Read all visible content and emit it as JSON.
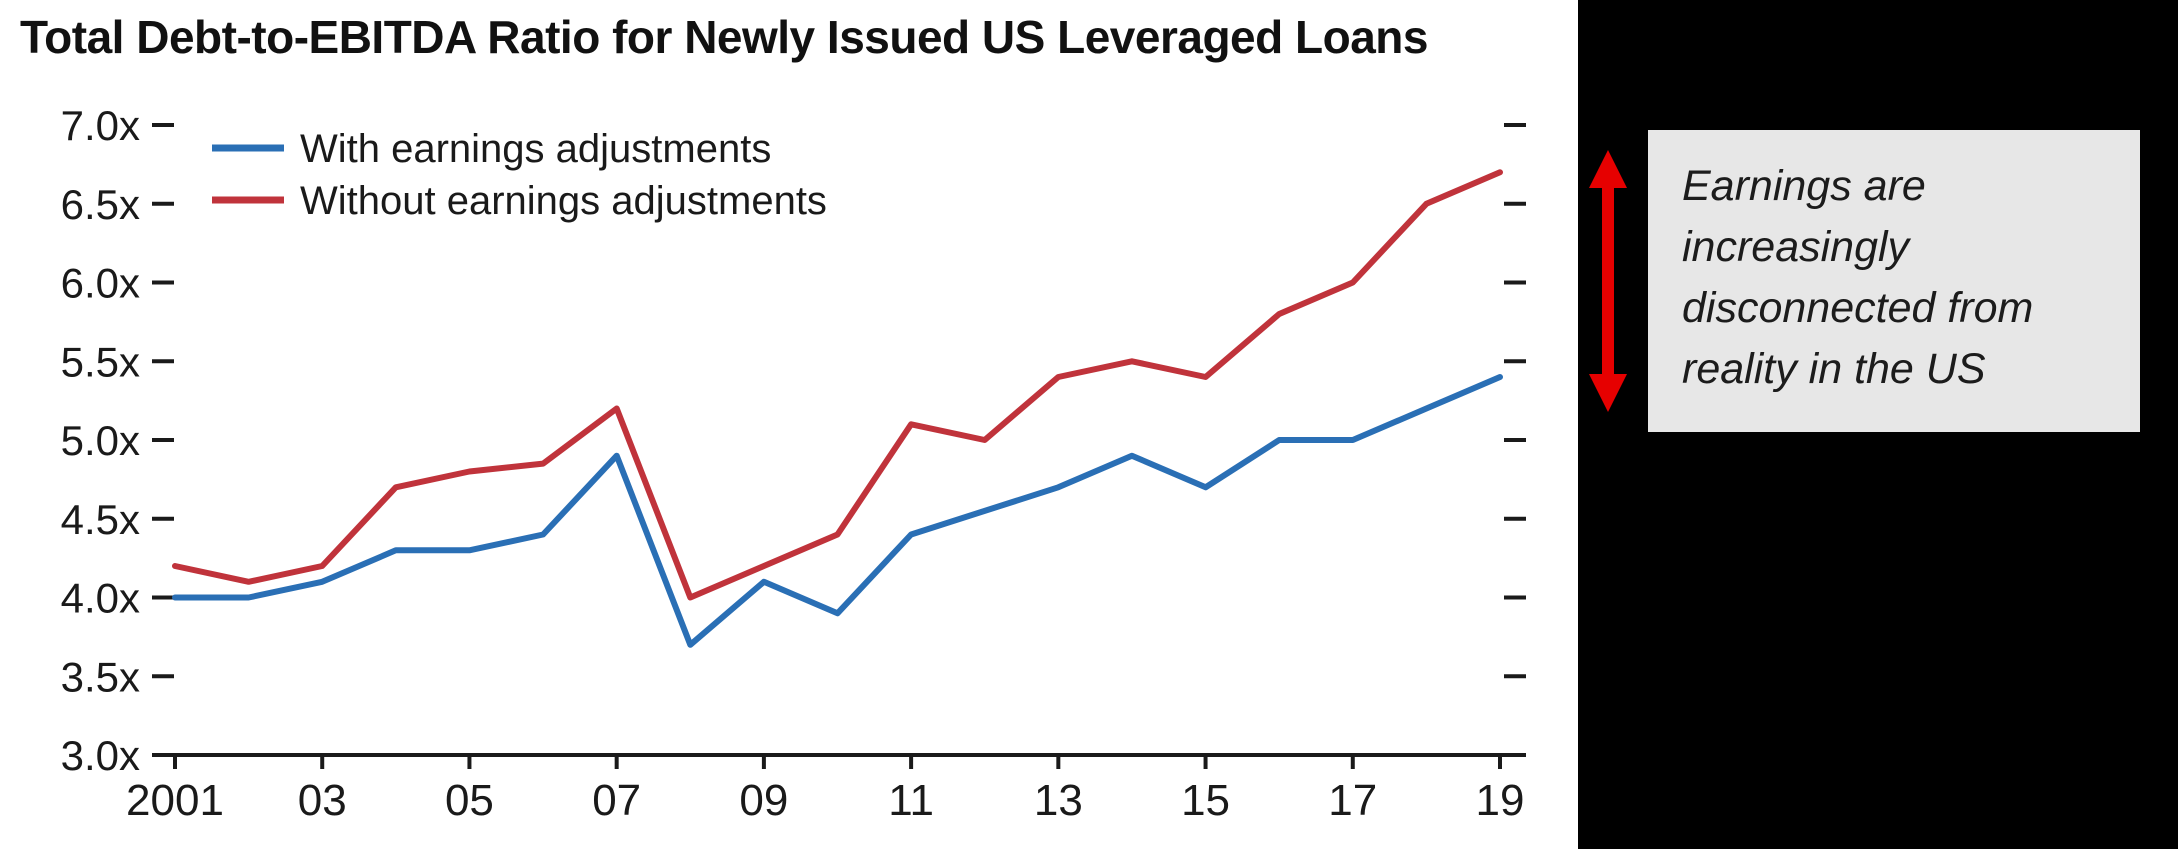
{
  "title": "Total Debt-to-EBITDA Ratio for Newly Issued US Leveraged Loans",
  "annotation": {
    "text": "Earnings are increasingly disconnected from reality in the US"
  },
  "colors": {
    "blue_series": "#2a6fb5",
    "red_series": "#c0333b",
    "arrow_red": "#e60000",
    "annotation_bg": "#e7e7e7",
    "panel_bg": "#000000",
    "axis_ink": "#1a1a1a"
  },
  "chart_data": {
    "type": "line",
    "title": "Total Debt-to-EBITDA Ratio for Newly Issued US Leveraged Loans",
    "x": [
      2001,
      2002,
      2003,
      2004,
      2005,
      2006,
      2007,
      2008,
      2009,
      2010,
      2011,
      2012,
      2013,
      2014,
      2015,
      2016,
      2017,
      2018,
      2019
    ],
    "x_tick_labels": [
      "2001",
      "03",
      "05",
      "07",
      "09",
      "11",
      "13",
      "15",
      "17",
      "19"
    ],
    "x_tick_indices": [
      0,
      2,
      4,
      6,
      8,
      10,
      12,
      14,
      16,
      18
    ],
    "series": [
      {
        "name": "With earnings adjustments",
        "color": "#2a6fb5",
        "values": [
          4.0,
          4.0,
          4.1,
          4.3,
          4.3,
          4.4,
          4.9,
          3.7,
          4.1,
          3.9,
          4.4,
          4.55,
          4.7,
          4.9,
          4.7,
          5.0,
          5.0,
          5.2,
          5.4
        ]
      },
      {
        "name": "Without earnings adjustments",
        "color": "#c0333b",
        "values": [
          4.2,
          4.1,
          4.2,
          4.7,
          4.8,
          4.85,
          5.2,
          4.0,
          4.2,
          4.4,
          5.1,
          5.0,
          5.4,
          5.5,
          5.4,
          5.8,
          6.0,
          6.5,
          6.7
        ]
      }
    ],
    "ylim": [
      3.0,
      7.0
    ],
    "ytick_step": 0.5,
    "ytick_suffix": "x",
    "xlabel": "",
    "ylabel": "",
    "grid": false,
    "legend_position": "top-left"
  }
}
